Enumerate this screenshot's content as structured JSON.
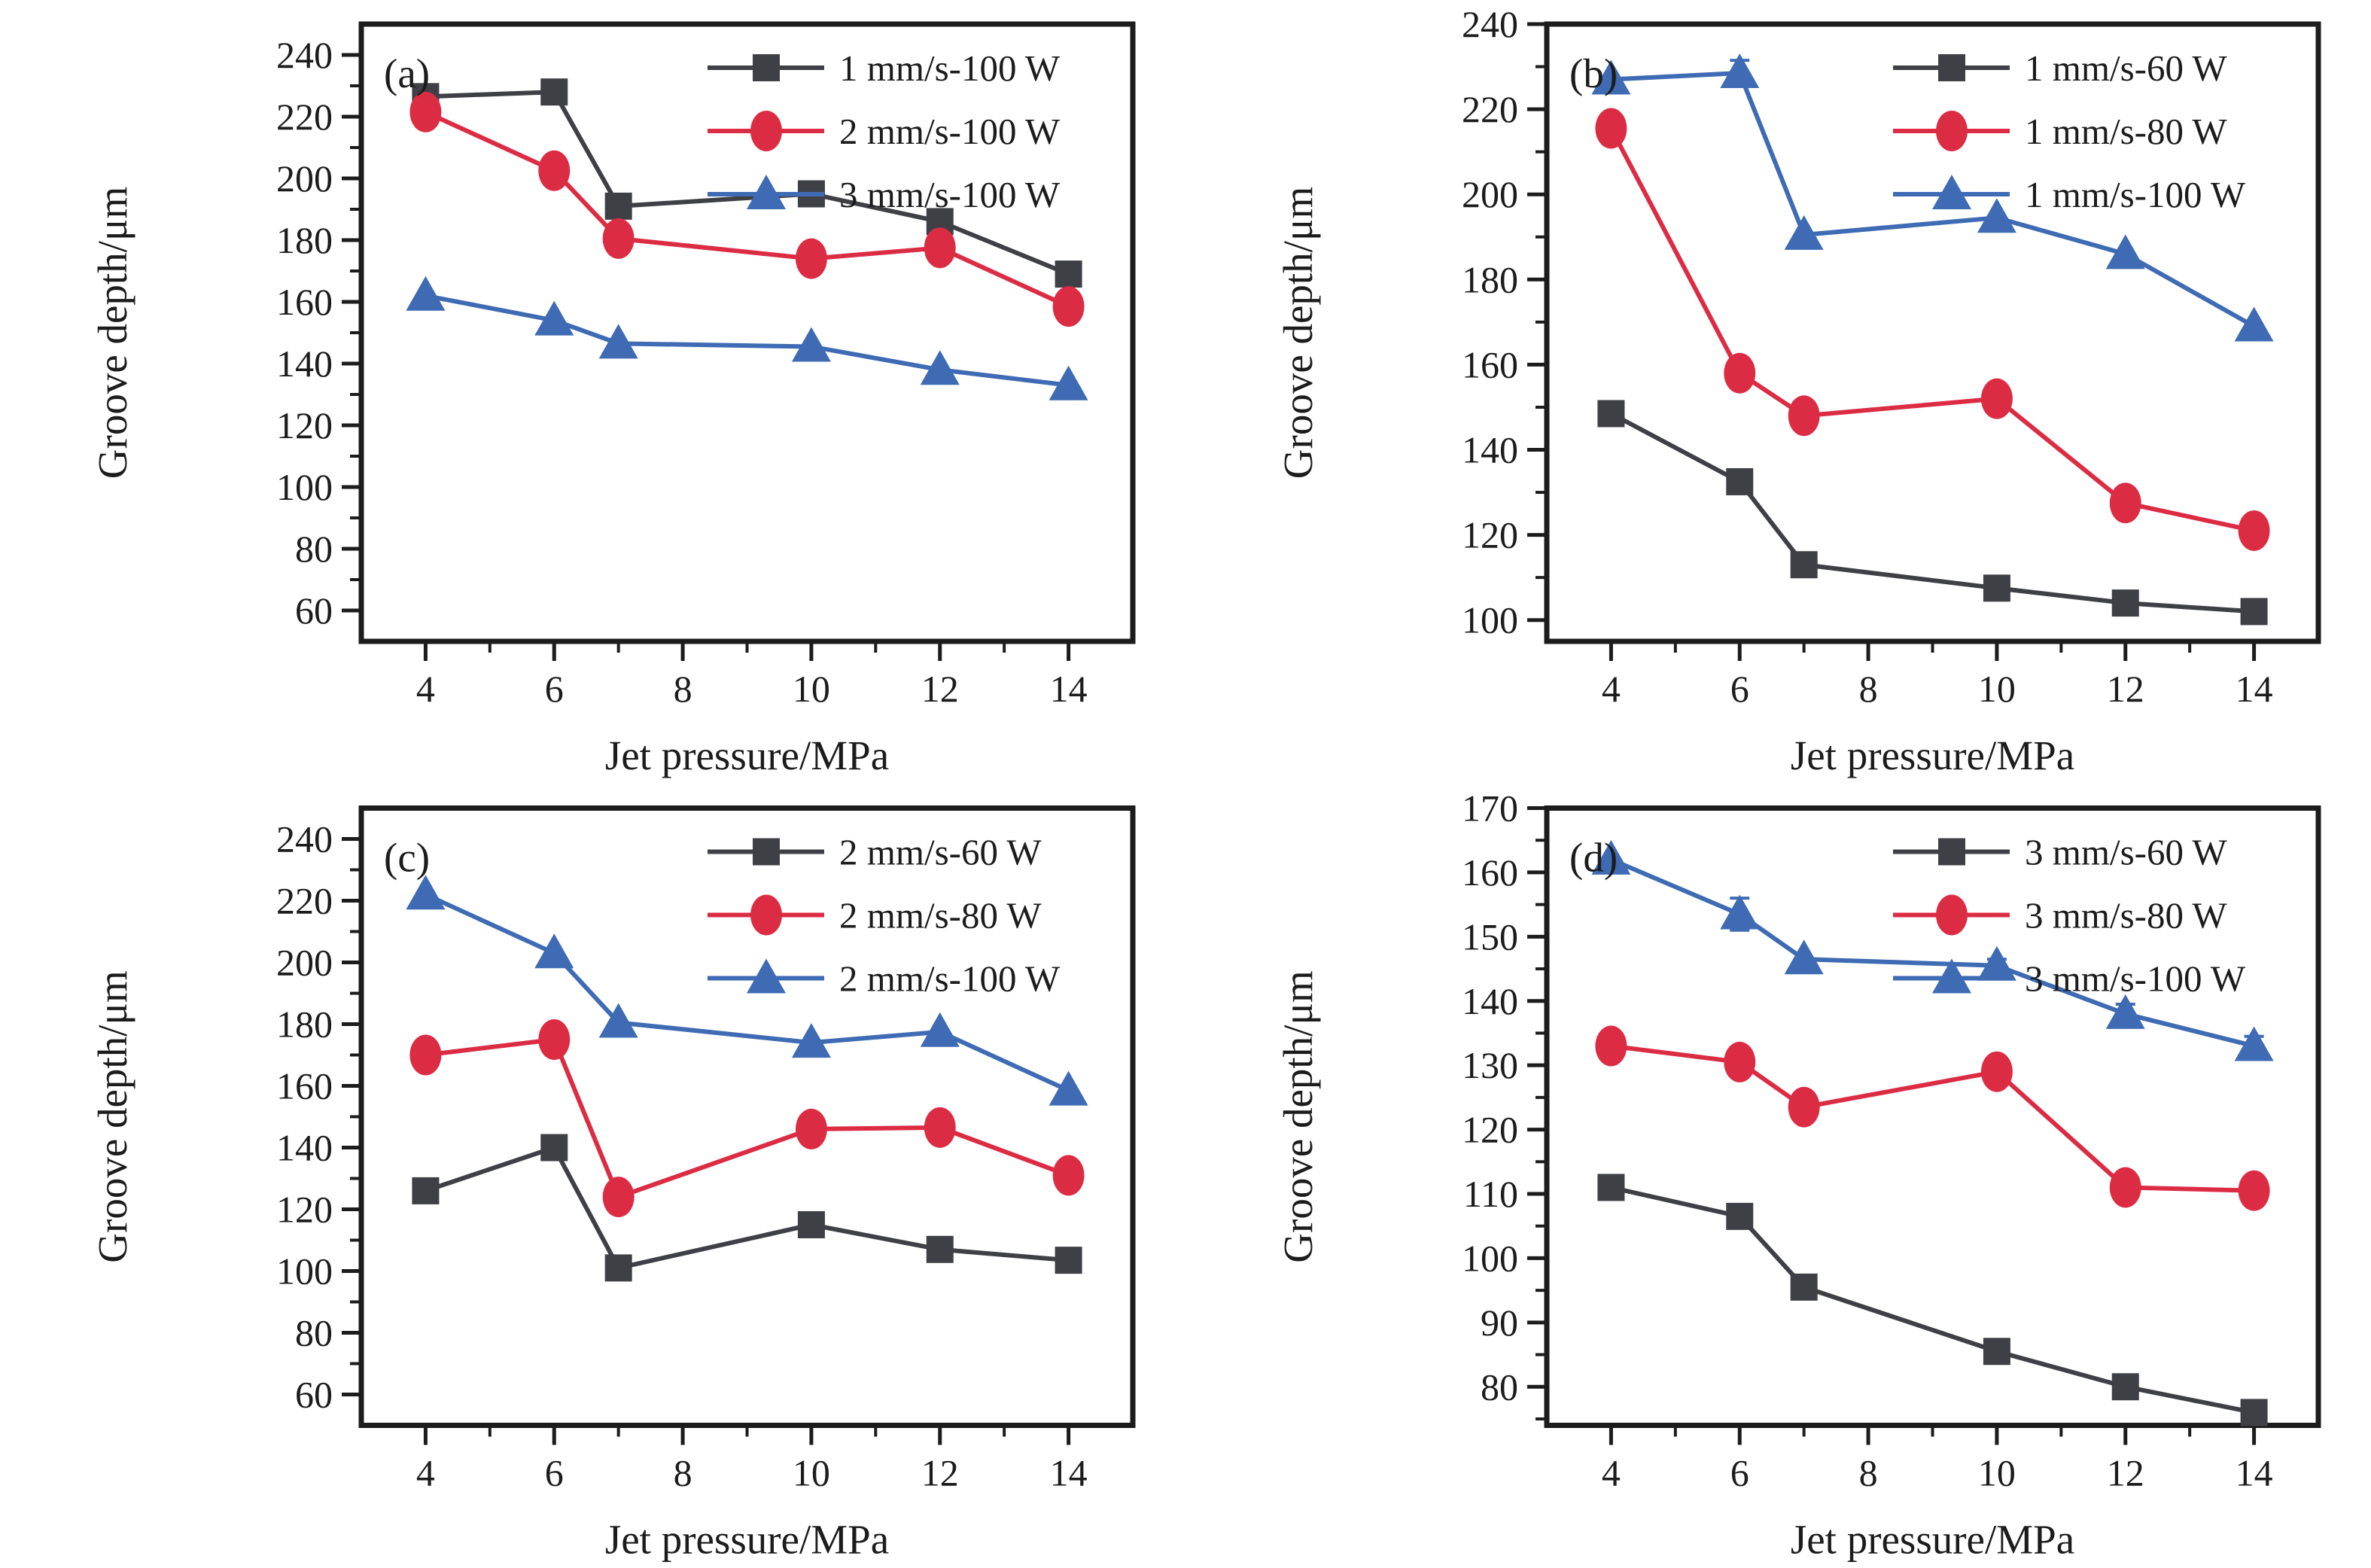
{
  "figure": {
    "background": "#ffffff",
    "ink_color": "#1c1c1c",
    "xlabel": "Jet pressure/MPa",
    "ylabel": "Groove depth/μm",
    "series_colors": {
      "black": "#3f4046",
      "red": "#dc2c44",
      "blue": "#3e6bb4"
    }
  },
  "chart_data": [
    {
      "type": "line",
      "panel_label": "(a)",
      "xlabel": "Jet pressure/MPa",
      "ylabel": "Groove depth/μm",
      "x": [
        4,
        6,
        7,
        10,
        12,
        14
      ],
      "xlim": [
        3,
        15
      ],
      "xticks": [
        4,
        6,
        8,
        10,
        12,
        14
      ],
      "xticks_minor": [
        5,
        7,
        9,
        11,
        13
      ],
      "ylim": [
        50,
        250
      ],
      "yticks": [
        60,
        80,
        100,
        120,
        140,
        160,
        180,
        200,
        220,
        240
      ],
      "ytick_minor_step": 10,
      "grid": false,
      "legend_position": "top-right-inside",
      "series": [
        {
          "name": "1 mm/s-100 W",
          "marker": "square",
          "color": "#3f4046",
          "values": [
            226.5,
            228,
            191,
            195,
            186,
            169
          ],
          "err": [
            0,
            0,
            0,
            0,
            0,
            0
          ]
        },
        {
          "name": "2 mm/s-100 W",
          "marker": "circle",
          "color": "#dc2c44",
          "values": [
            221.5,
            202.5,
            180.5,
            174,
            177.5,
            158.5
          ],
          "err": [
            0,
            0,
            0,
            0,
            0,
            0
          ]
        },
        {
          "name": "3 mm/s-100 W",
          "marker": "triangle",
          "color": "#3e6bb4",
          "values": [
            162,
            154,
            146.5,
            145.5,
            138,
            133
          ],
          "err": [
            0,
            0,
            0,
            0,
            0,
            0
          ]
        }
      ]
    },
    {
      "type": "line",
      "panel_label": "(b)",
      "xlabel": "Jet pressure/MPa",
      "ylabel": "Groove depth/μm",
      "x": [
        4,
        6,
        7,
        10,
        12,
        14
      ],
      "xlim": [
        3,
        15
      ],
      "xticks": [
        4,
        6,
        8,
        10,
        12,
        14
      ],
      "xticks_minor": [
        5,
        7,
        9,
        11,
        13
      ],
      "ylim": [
        95,
        240
      ],
      "yticks": [
        100,
        120,
        140,
        160,
        180,
        200,
        220,
        240
      ],
      "ytick_minor_step": 10,
      "grid": false,
      "legend_position": "top-right-inside",
      "series": [
        {
          "name": "1 mm/s-60 W",
          "marker": "square",
          "color": "#3f4046",
          "values": [
            148.5,
            132.5,
            113,
            107.5,
            104,
            102
          ],
          "err": [
            0,
            0,
            0,
            0,
            0,
            0
          ]
        },
        {
          "name": "1 mm/s-80 W",
          "marker": "circle",
          "color": "#dc2c44",
          "values": [
            215.5,
            158,
            148,
            152,
            127.5,
            121
          ],
          "err": [
            0,
            0,
            0,
            0,
            0,
            0
          ]
        },
        {
          "name": "1 mm/s-100 W",
          "marker": "triangle",
          "color": "#3e6bb4",
          "values": [
            227,
            228.5,
            190.5,
            194.5,
            186,
            169
          ],
          "err": [
            0,
            3,
            0,
            0,
            0,
            0
          ]
        }
      ]
    },
    {
      "type": "line",
      "panel_label": "(c)",
      "xlabel": "Jet pressure/MPa",
      "ylabel": "Groove depth/μm",
      "x": [
        4,
        6,
        7,
        10,
        12,
        14
      ],
      "xlim": [
        3,
        15
      ],
      "xticks": [
        4,
        6,
        8,
        10,
        12,
        14
      ],
      "xticks_minor": [
        5,
        7,
        9,
        11,
        13
      ],
      "ylim": [
        50,
        250
      ],
      "yticks": [
        60,
        80,
        100,
        120,
        140,
        160,
        180,
        200,
        220,
        240
      ],
      "ytick_minor_step": 10,
      "grid": false,
      "legend_position": "top-right-inside",
      "series": [
        {
          "name": "2 mm/s-60 W",
          "marker": "square",
          "color": "#3f4046",
          "values": [
            126,
            140,
            101,
            115,
            107,
            103.5
          ],
          "err": [
            0,
            0,
            0,
            0,
            0,
            0
          ]
        },
        {
          "name": "2 mm/s-80 W",
          "marker": "circle",
          "color": "#dc2c44",
          "values": [
            170,
            175,
            124,
            146,
            146.5,
            131
          ],
          "err": [
            0,
            0,
            0,
            0,
            0,
            0
          ]
        },
        {
          "name": "2 mm/s-100 W",
          "marker": "triangle",
          "color": "#3e6bb4",
          "values": [
            222,
            203,
            180.5,
            174,
            177.5,
            158.5
          ],
          "err": [
            0,
            0,
            0,
            0,
            0,
            0
          ]
        }
      ]
    },
    {
      "type": "line",
      "panel_label": "(d)",
      "xlabel": "Jet pressure/MPa",
      "ylabel": "Groove depth/μm",
      "x": [
        4,
        6,
        7,
        10,
        12,
        14
      ],
      "xlim": [
        74,
        170
      ],
      "xaxis_range": [
        3,
        15
      ],
      "xticks": [
        4,
        6,
        8,
        10,
        12,
        14
      ],
      "xticks_minor": [
        5,
        7,
        9,
        11,
        13
      ],
      "ylim": [
        74,
        170
      ],
      "yticks": [
        80,
        90,
        100,
        110,
        120,
        130,
        140,
        150,
        160,
        170
      ],
      "ytick_minor_step": 5,
      "grid": false,
      "legend_position": "top-right-inside",
      "series": [
        {
          "name": "3 mm/s-60 W",
          "marker": "square",
          "color": "#3f4046",
          "values": [
            111,
            106.5,
            95.5,
            85.5,
            80,
            76
          ],
          "err": [
            0,
            0,
            0,
            0,
            0,
            0
          ]
        },
        {
          "name": "3 mm/s-80 W",
          "marker": "circle",
          "color": "#dc2c44",
          "values": [
            133,
            130.5,
            123.5,
            129,
            111,
            110.5
          ],
          "err": [
            0,
            0,
            0,
            0,
            0,
            0
          ]
        },
        {
          "name": "3 mm/s-100 W",
          "marker": "triangle",
          "color": "#3e6bb4",
          "values": [
            162,
            153.5,
            146.5,
            145.5,
            138,
            133
          ],
          "err": [
            0,
            2.5,
            0,
            1,
            1.5,
            1.5
          ]
        }
      ]
    }
  ]
}
